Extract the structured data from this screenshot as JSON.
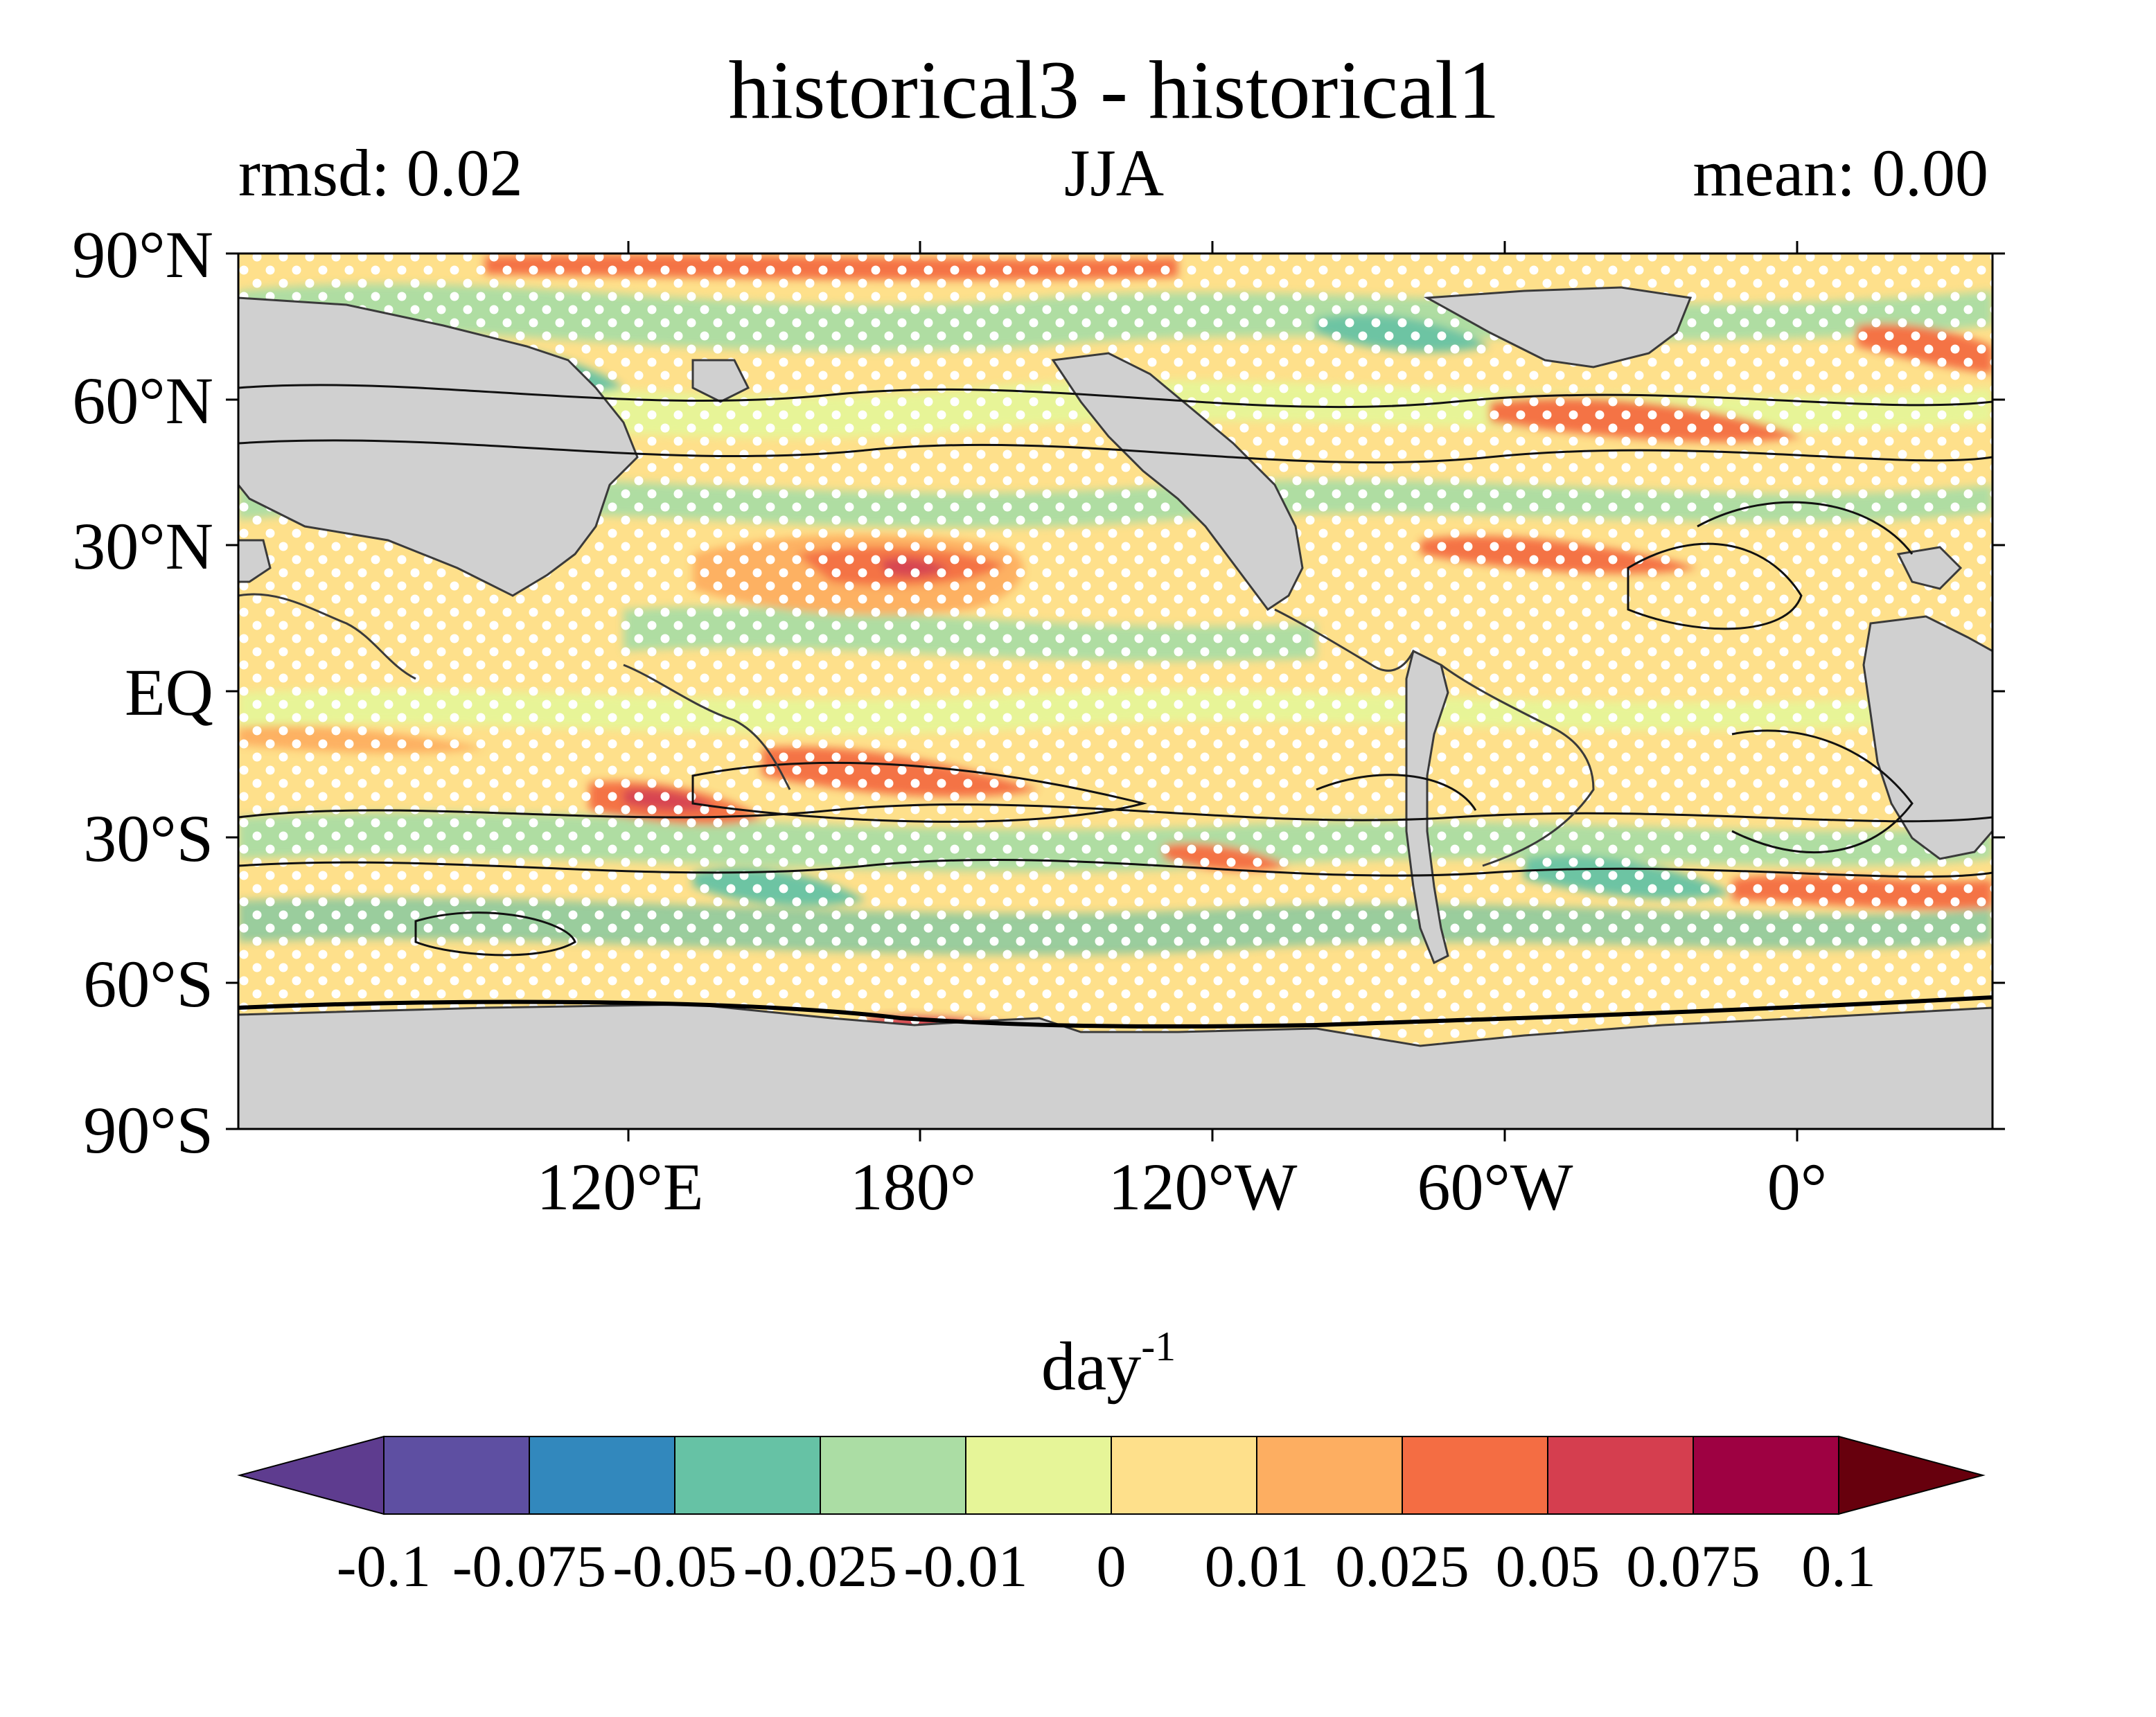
{
  "title": "historical3 - historical1",
  "subtitle_left": "rmsd: 0.02",
  "subtitle_center": "JJA",
  "subtitle_right": "mean: 0.00",
  "map": {
    "lat_ticks": [
      "90°N",
      "60°N",
      "30°N",
      "EQ",
      "30°S",
      "60°S",
      "90°S"
    ],
    "lon_ticks": [
      "120°E",
      "180°",
      "120°W",
      "60°W",
      "0°"
    ],
    "colors": {
      "land": "#d0d0d0",
      "ocean_base": "#fee08b",
      "stipple": "#ffffff",
      "contour": "#111111",
      "coastline": "#3a3a3a"
    }
  },
  "colorbar": {
    "unit_base": "day",
    "unit_exp": "-1",
    "labels": [
      "-0.1",
      "-0.075",
      "-0.05",
      "-0.025",
      "-0.01",
      "0",
      "0.01",
      "0.025",
      "0.05",
      "0.075",
      "0.1"
    ],
    "under_color": "#5e3c8f",
    "over_color": "#67000d",
    "colors": [
      "#5e4fa2",
      "#3288bd",
      "#66c2a5",
      "#abdda4",
      "#e6f598",
      "#fee08b",
      "#fdae61",
      "#f46d43",
      "#d53e4f",
      "#9e0142"
    ]
  }
}
